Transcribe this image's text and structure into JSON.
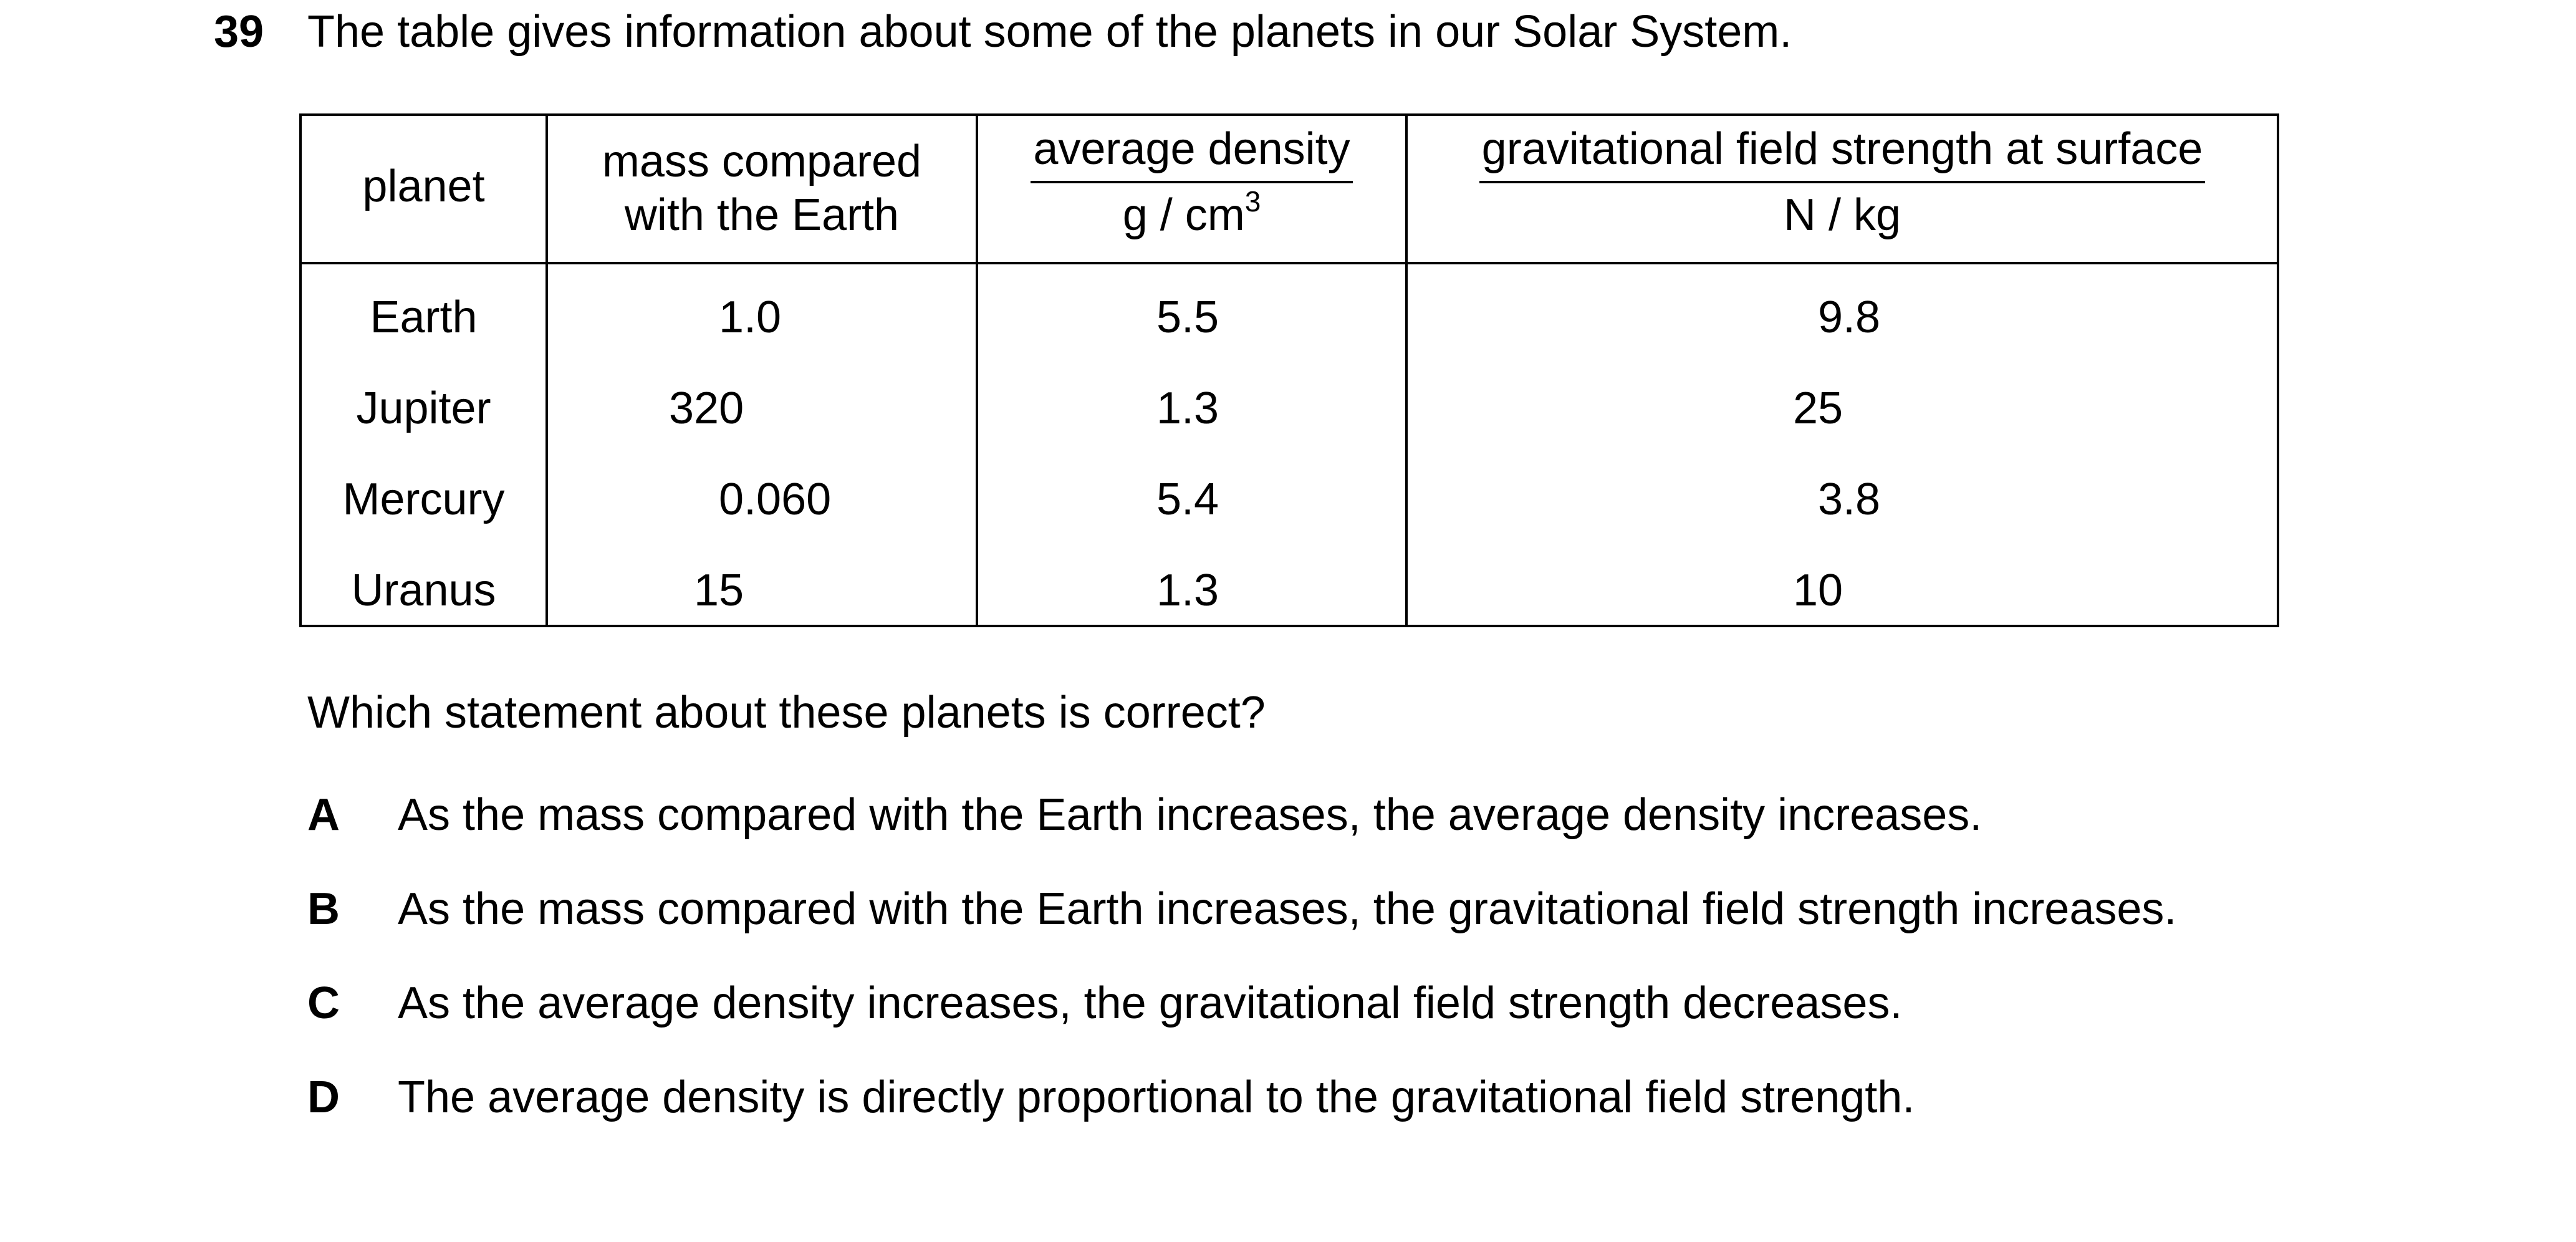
{
  "question_number": "39",
  "intro": "The table gives information about some of the planets in our Solar System.",
  "table": {
    "headers": {
      "planet": "planet",
      "mass_line1": "mass compared",
      "mass_line2": "with the Earth",
      "density_label": "average density",
      "density_unit_base": "g / cm",
      "density_unit_exp": "3",
      "gfs_label": "gravitational field strength at surface",
      "gfs_unit": "N / kg"
    },
    "rows": [
      {
        "planet": "Earth",
        "mass": "1.0",
        "density": "5.5",
        "gfs": "9.8"
      },
      {
        "planet": "Jupiter",
        "mass": "320",
        "density": "1.3",
        "gfs": "25"
      },
      {
        "planet": "Mercury",
        "mass": "0.060",
        "density": "5.4",
        "gfs": "3.8"
      },
      {
        "planet": "Uranus",
        "mass": "15",
        "density": "1.3",
        "gfs": "10"
      }
    ]
  },
  "question": "Which statement about these planets is correct?",
  "options": [
    {
      "letter": "A",
      "text": "As the mass compared with the Earth increases, the average density increases."
    },
    {
      "letter": "B",
      "text": "As the mass compared with the Earth increases, the gravitational field strength increases."
    },
    {
      "letter": "C",
      "text": "As the average density increases, the gravitational field strength decreases."
    },
    {
      "letter": "D",
      "text": "The average density is directly proportional to the gravitational field strength."
    }
  ]
}
